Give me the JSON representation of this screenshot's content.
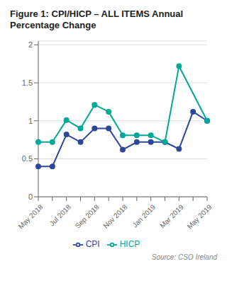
{
  "chart_data": {
    "type": "line",
    "title": "Figure 1: CPI/HICP – ALL ITEMS Annual\nPercentage Change",
    "categories": [
      "May 2018",
      null,
      "Jul 2018",
      null,
      "Sep 2018",
      null,
      "Nov 2018",
      null,
      "Jan 2019",
      null,
      "Mar 2019",
      null,
      "May 2019"
    ],
    "series": [
      {
        "name": "CPI",
        "color": "#2e4799",
        "marker": "circle",
        "line_style": "solid",
        "values": [
          0.4,
          0.4,
          0.82,
          0.72,
          0.9,
          0.9,
          0.62,
          0.72,
          0.72,
          0.72,
          0.63,
          1.12,
          1.0
        ]
      },
      {
        "name": "HICP",
        "color": "#00a896",
        "marker": "circle",
        "line_style": "solid",
        "values": [
          0.72,
          0.72,
          1.01,
          0.9,
          1.21,
          1.12,
          0.81,
          0.81,
          0.81,
          0.72,
          1.72,
          null,
          1.0
        ]
      }
    ],
    "ylim": [
      0,
      2.05
    ],
    "yticks": [
      0,
      0.5,
      1.0,
      1.5,
      2.0
    ],
    "grid": true,
    "legend": "bottom",
    "annotations": [
      "Source: CSO Ireland"
    ]
  }
}
